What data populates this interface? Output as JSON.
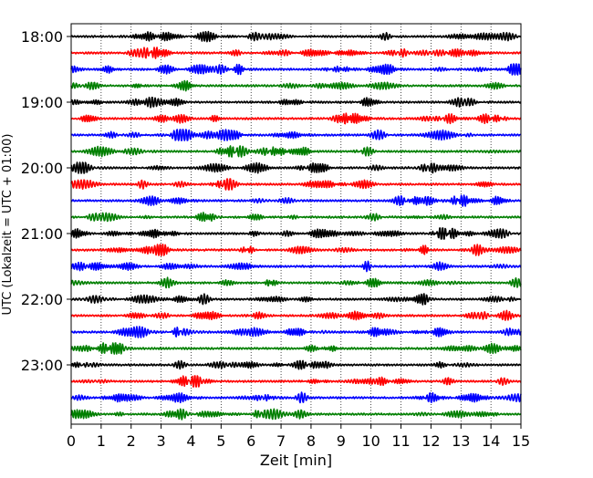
{
  "chart_data": {
    "type": "line",
    "title": "",
    "xlabel": "Zeit  [min]",
    "ylabel": "UTC (Lokalzeit = UTC + 01:00)",
    "xlim": [
      0,
      15
    ],
    "x_ticks": [
      "0",
      "1",
      "2",
      "3",
      "4",
      "5",
      "6",
      "7",
      "8",
      "9",
      "10",
      "11",
      "12",
      "13",
      "14",
      "15"
    ],
    "y_ticks": [
      "18:00",
      "19:00",
      "20:00",
      "21:00",
      "22:00",
      "23:00"
    ],
    "grid": "vertical dotted at each minute",
    "trace_minutes": 15,
    "trace_count": 24,
    "trace_colors": [
      "#000000",
      "#ff0000",
      "#0000ff",
      "#007f00"
    ]
  }
}
